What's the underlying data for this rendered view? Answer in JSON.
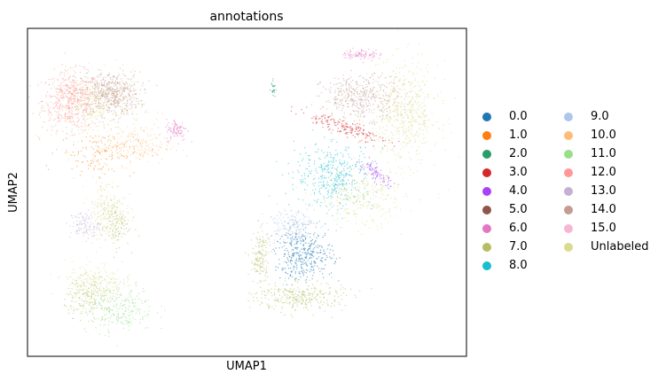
{
  "chart_data": {
    "type": "scatter",
    "title": "annotations",
    "xlabel": "UMAP1",
    "ylabel": "UMAP2",
    "xticks": "none",
    "yticks": "none",
    "grid": false,
    "legend_placement": "right",
    "xlim": [
      0,
      100
    ],
    "ylim": [
      0,
      100
    ],
    "series": [
      {
        "name": "0.0",
        "color": "#1f77b4"
      },
      {
        "name": "1.0",
        "color": "#ff7f0e"
      },
      {
        "name": "2.0",
        "color": "#279e68"
      },
      {
        "name": "3.0",
        "color": "#d62728"
      },
      {
        "name": "4.0",
        "color": "#aa40fc"
      },
      {
        "name": "5.0",
        "color": "#8c564b"
      },
      {
        "name": "6.0",
        "color": "#e377c2"
      },
      {
        "name": "7.0",
        "color": "#b5bd61"
      },
      {
        "name": "8.0",
        "color": "#17becf"
      },
      {
        "name": "9.0",
        "color": "#aec7e8"
      },
      {
        "name": "10.0",
        "color": "#ffbb78"
      },
      {
        "name": "11.0",
        "color": "#98df8a"
      },
      {
        "name": "12.0",
        "color": "#ff9896"
      },
      {
        "name": "13.0",
        "color": "#c5b0d5"
      },
      {
        "name": "14.0",
        "color": "#c49c94"
      },
      {
        "name": "15.0",
        "color": "#f7b6d2"
      },
      {
        "name": "Unlabeled",
        "color": "#dbdb8d"
      }
    ],
    "clusters": [
      {
        "label": "12.0",
        "cx": 10,
        "cy": 78,
        "rx": 6,
        "ry": 8,
        "n": 520
      },
      {
        "label": "14.0",
        "cx": 19,
        "cy": 80,
        "rx": 6,
        "ry": 6,
        "n": 520
      },
      {
        "label": "Unlabeled",
        "cx": 16,
        "cy": 76,
        "rx": 9,
        "ry": 9,
        "n": 340
      },
      {
        "label": "1.0",
        "cx": 16,
        "cy": 62,
        "rx": 8,
        "ry": 6,
        "n": 130
      },
      {
        "label": "10.0",
        "cx": 24,
        "cy": 64,
        "rx": 8,
        "ry": 5,
        "n": 200
      },
      {
        "label": "6.0",
        "cx": 34,
        "cy": 69,
        "rx": 2.2,
        "ry": 3,
        "n": 90
      },
      {
        "label": "Unlabeled",
        "cx": 18,
        "cy": 45,
        "rx": 4,
        "ry": 8,
        "n": 200
      },
      {
        "label": "13.0",
        "cx": 13,
        "cy": 40,
        "rx": 3,
        "ry": 4,
        "n": 110
      },
      {
        "label": "7.0",
        "cx": 20,
        "cy": 40,
        "rx": 3,
        "ry": 6,
        "n": 120
      },
      {
        "label": "11.0",
        "cx": 20,
        "cy": 15,
        "rx": 8,
        "ry": 7,
        "n": 300
      },
      {
        "label": "Unlabeled",
        "cx": 15,
        "cy": 22,
        "rx": 6,
        "ry": 6,
        "n": 220
      },
      {
        "label": "7.0",
        "cx": 14,
        "cy": 18,
        "rx": 5,
        "ry": 5,
        "n": 110
      },
      {
        "label": "Unlabeled",
        "cx": 86,
        "cy": 74,
        "rx": 7,
        "ry": 14,
        "n": 560
      },
      {
        "label": "14.0",
        "cx": 76,
        "cy": 79,
        "rx": 8,
        "ry": 6,
        "n": 420
      },
      {
        "label": "6.0",
        "cx": 76,
        "cy": 92,
        "rx": 4,
        "ry": 1.5,
        "n": 90
      },
      {
        "label": "3.0",
        "cx": 72,
        "cy": 70,
        "rx": 10,
        "ry": 2,
        "n": 180,
        "tilt": -0.45
      },
      {
        "label": "4.0",
        "cx": 79,
        "cy": 56,
        "rx": 5,
        "ry": 1.5,
        "n": 90,
        "tilt": -0.8
      },
      {
        "label": "8.0",
        "cx": 70,
        "cy": 55,
        "rx": 8,
        "ry": 9,
        "n": 400
      },
      {
        "label": "Unlabeled",
        "cx": 76,
        "cy": 48,
        "rx": 9,
        "ry": 8,
        "n": 300
      },
      {
        "label": "0.0",
        "cx": 63,
        "cy": 31,
        "rx": 6,
        "ry": 7,
        "n": 380
      },
      {
        "label": "9.0",
        "cx": 60,
        "cy": 40,
        "rx": 5,
        "ry": 5,
        "n": 200
      },
      {
        "label": "7.0",
        "cx": 62,
        "cy": 18,
        "rx": 9,
        "ry": 4,
        "n": 300
      },
      {
        "label": "7.0",
        "cx": 53,
        "cy": 30,
        "rx": 2,
        "ry": 8,
        "n": 140
      },
      {
        "label": "2.0",
        "cx": 56,
        "cy": 82,
        "rx": 0.5,
        "ry": 2,
        "n": 25
      }
    ]
  }
}
